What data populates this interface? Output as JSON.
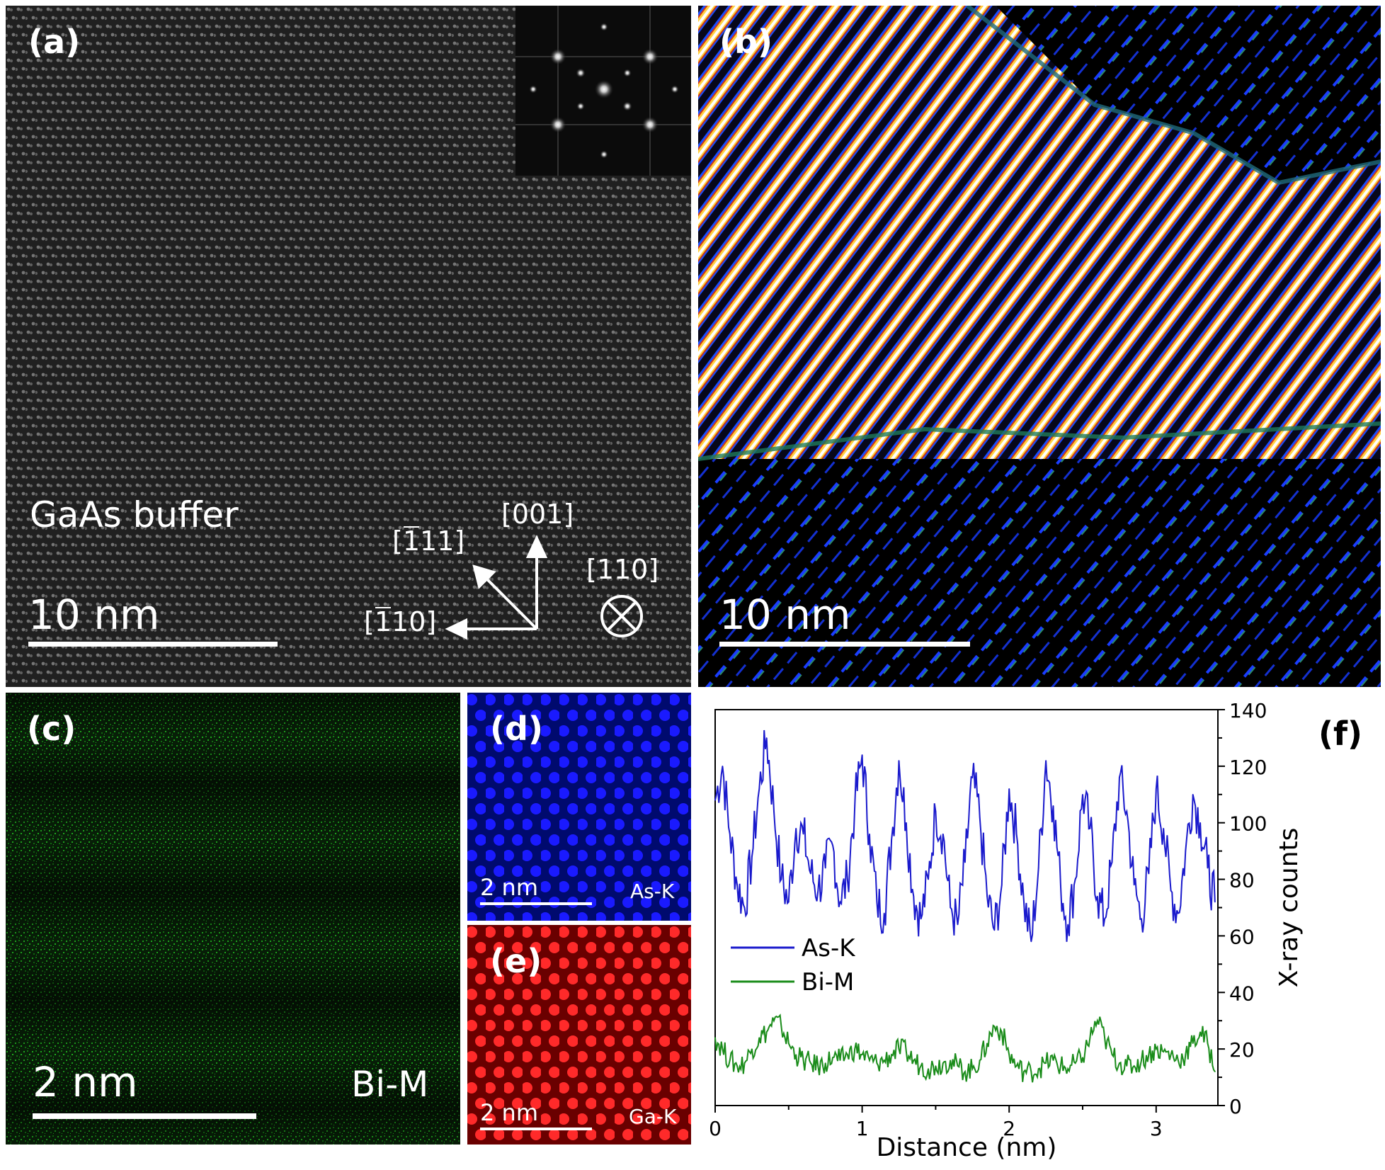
{
  "panels": {
    "a": {
      "label": "(a)",
      "region_label": "GaAs buffer",
      "scale_bar": "10 nm",
      "dir_111": {
        "bar": "1",
        "rest": "11]"
      },
      "dir_001": "[001]",
      "dir_110_bar": {
        "bar": "1",
        "rest": "10]"
      },
      "dir_110": "[110]"
    },
    "b": {
      "label": "(b)",
      "scale_bar": "10 nm"
    },
    "c": {
      "label": "(c)",
      "scale_bar": "2 nm",
      "element": "Bi-M"
    },
    "d": {
      "label": "(d)",
      "scale_bar": "2 nm",
      "element": "As-K"
    },
    "e": {
      "label": "(e)",
      "scale_bar": "2 nm",
      "element": "Ga-K"
    },
    "f": {
      "label": "(f)"
    }
  },
  "chart_data": {
    "type": "line",
    "xlabel": "Distance (nm)",
    "ylabel": "X-ray counts",
    "xlim": [
      0,
      3.42
    ],
    "ylim": [
      0,
      140
    ],
    "x_ticks": [
      "0",
      "1",
      "2",
      "3"
    ],
    "y_ticks": [
      "0",
      "20",
      "40",
      "60",
      "80",
      "100",
      "120",
      "140"
    ],
    "legend_position": "lower-left",
    "series": [
      {
        "name": "As-K",
        "color": "#1a1acc",
        "x": [
          0,
          0.05,
          0.1,
          0.15,
          0.2,
          0.25,
          0.3,
          0.35,
          0.4,
          0.45,
          0.5,
          0.55,
          0.6,
          0.65,
          0.7,
          0.75,
          0.8,
          0.85,
          0.9,
          0.95,
          1.0,
          1.05,
          1.1,
          1.15,
          1.2,
          1.25,
          1.3,
          1.35,
          1.4,
          1.45,
          1.5,
          1.55,
          1.6,
          1.65,
          1.7,
          1.75,
          1.8,
          1.85,
          1.9,
          1.95,
          2.0,
          2.05,
          2.1,
          2.15,
          2.2,
          2.25,
          2.3,
          2.35,
          2.4,
          2.45,
          2.5,
          2.55,
          2.6,
          2.65,
          2.7,
          2.75,
          2.8,
          2.85,
          2.9,
          2.95,
          3.0,
          3.05,
          3.1,
          3.15,
          3.2,
          3.25,
          3.3,
          3.35,
          3.4
        ],
        "y": [
          108,
          120,
          96,
          78,
          70,
          88,
          112,
          130,
          104,
          80,
          72,
          98,
          96,
          82,
          76,
          84,
          92,
          72,
          80,
          106,
          124,
          96,
          72,
          68,
          94,
          122,
          100,
          74,
          66,
          80,
          104,
          96,
          70,
          64,
          86,
          116,
          102,
          74,
          62,
          78,
          112,
          96,
          72,
          58,
          84,
          122,
          106,
          78,
          64,
          80,
          110,
          98,
          74,
          66,
          86,
          116,
          104,
          78,
          66,
          82,
          112,
          98,
          76,
          68,
          90,
          110,
          100,
          84,
          72
        ],
        "values": [
          108,
          120,
          96,
          78,
          70,
          88,
          112,
          130,
          104,
          80,
          72,
          98,
          96,
          82,
          76,
          84,
          92,
          72,
          80,
          106,
          124,
          96,
          72,
          68,
          94,
          122,
          100,
          74,
          66,
          80,
          104,
          96,
          70,
          64,
          86,
          116,
          102,
          74,
          62,
          78,
          112,
          96,
          72,
          58,
          84,
          122,
          106,
          78,
          64,
          80,
          110,
          98,
          74,
          66,
          86,
          116,
          104,
          78,
          66,
          82,
          112,
          98,
          76,
          68,
          90,
          110,
          100,
          84,
          72
        ]
      },
      {
        "name": "Bi-M",
        "color": "#1a8c1a",
        "x": [
          0,
          0.05,
          0.1,
          0.15,
          0.2,
          0.25,
          0.3,
          0.35,
          0.4,
          0.45,
          0.5,
          0.55,
          0.6,
          0.65,
          0.7,
          0.75,
          0.8,
          0.85,
          0.9,
          0.95,
          1.0,
          1.05,
          1.1,
          1.15,
          1.2,
          1.25,
          1.3,
          1.35,
          1.4,
          1.45,
          1.5,
          1.55,
          1.6,
          1.65,
          1.7,
          1.75,
          1.8,
          1.85,
          1.9,
          1.95,
          2.0,
          2.05,
          2.1,
          2.15,
          2.2,
          2.25,
          2.3,
          2.35,
          2.4,
          2.45,
          2.5,
          2.55,
          2.6,
          2.65,
          2.7,
          2.75,
          2.8,
          2.85,
          2.9,
          2.95,
          3.0,
          3.05,
          3.1,
          3.15,
          3.2,
          3.25,
          3.3,
          3.35,
          3.4
        ],
        "y": [
          24,
          20,
          16,
          14,
          15,
          20,
          24,
          26,
          30,
          28,
          22,
          18,
          16,
          15,
          14,
          15,
          17,
          16,
          18,
          20,
          18,
          16,
          15,
          16,
          18,
          20,
          19,
          16,
          14,
          13,
          14,
          15,
          16,
          14,
          12,
          13,
          16,
          22,
          28,
          26,
          18,
          14,
          12,
          12,
          13,
          15,
          16,
          14,
          13,
          15,
          17,
          24,
          30,
          24,
          18,
          15,
          14,
          14,
          16,
          18,
          20,
          19,
          18,
          16,
          18,
          22,
          26,
          22,
          12
        ],
        "values": [
          24,
          20,
          16,
          14,
          15,
          20,
          24,
          26,
          30,
          28,
          22,
          18,
          16,
          15,
          14,
          15,
          17,
          16,
          18,
          20,
          18,
          16,
          15,
          16,
          18,
          20,
          19,
          16,
          14,
          13,
          14,
          15,
          16,
          14,
          12,
          13,
          16,
          22,
          28,
          26,
          18,
          14,
          12,
          12,
          13,
          15,
          16,
          14,
          13,
          15,
          17,
          24,
          30,
          24,
          18,
          15,
          14,
          14,
          16,
          18,
          20,
          19,
          18,
          16,
          18,
          22,
          26,
          22,
          12
        ]
      }
    ]
  }
}
